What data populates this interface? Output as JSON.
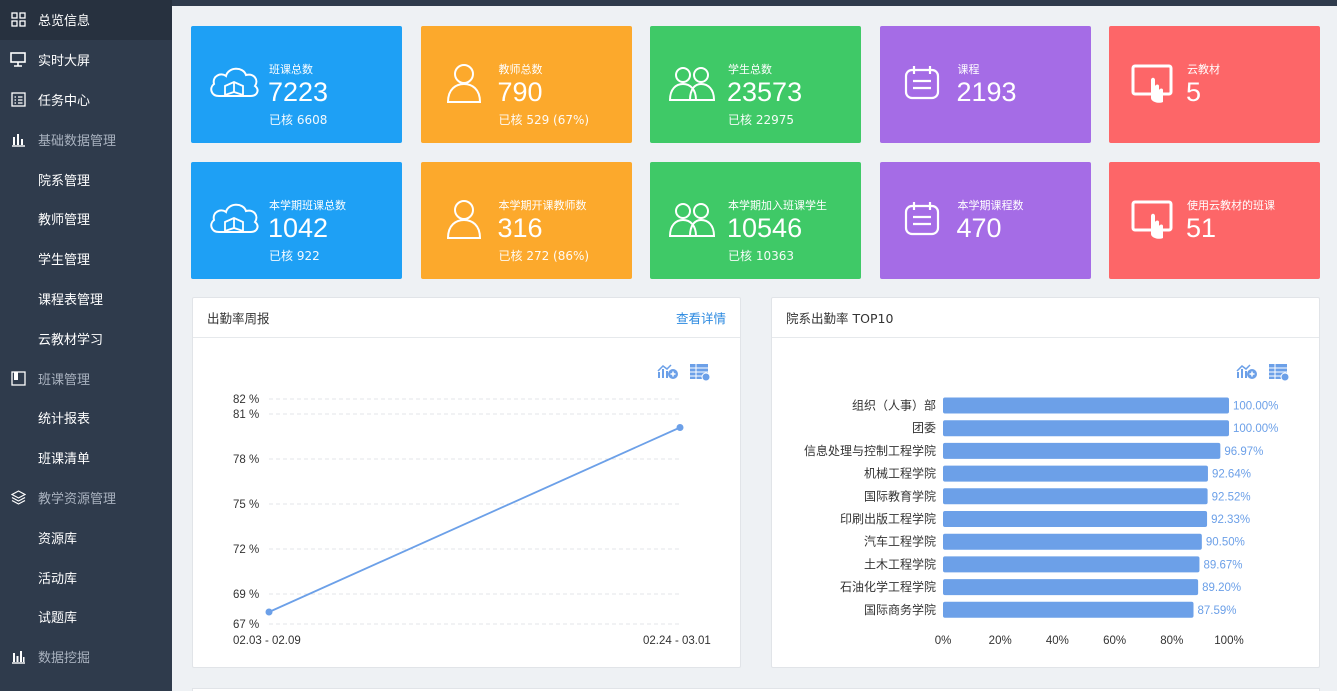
{
  "sidebar": {
    "items": [
      {
        "label": "总览信息",
        "icon": "dashboard-grid-icon",
        "type": "top"
      },
      {
        "label": "实时大屏",
        "icon": "monitor-icon",
        "type": "top"
      },
      {
        "label": "任务中心",
        "icon": "task-list-icon",
        "type": "top"
      },
      {
        "label": "基础数据管理",
        "icon": "bar-chart-icon",
        "type": "group"
      },
      {
        "label": "院系管理",
        "type": "sub"
      },
      {
        "label": "教师管理",
        "type": "sub"
      },
      {
        "label": "学生管理",
        "type": "sub"
      },
      {
        "label": "课程表管理",
        "type": "sub"
      },
      {
        "label": "云教材学习",
        "type": "sub"
      },
      {
        "label": "班课管理",
        "icon": "book-icon",
        "type": "group"
      },
      {
        "label": "统计报表",
        "type": "sub"
      },
      {
        "label": "班课清单",
        "type": "sub"
      },
      {
        "label": "教学资源管理",
        "icon": "layers-icon",
        "type": "group"
      },
      {
        "label": "资源库",
        "type": "sub"
      },
      {
        "label": "活动库",
        "type": "sub"
      },
      {
        "label": "试题库",
        "type": "sub"
      },
      {
        "label": "数据挖掘",
        "icon": "data-mining-icon",
        "type": "group"
      }
    ]
  },
  "cards": [
    {
      "label": "班课总数",
      "value": "7223",
      "sub": "已核 6608",
      "color": "#1ea0f5",
      "icon": "cloud-book-icon"
    },
    {
      "label": "教师总数",
      "value": "790",
      "sub": "已核 529 (67%)",
      "color": "#fca92c",
      "icon": "teacher-icon"
    },
    {
      "label": "学生总数",
      "value": "23573",
      "sub": "已核 22975",
      "color": "#3fc967",
      "icon": "students-icon"
    },
    {
      "label": "课程",
      "value": "2193",
      "sub": "",
      "color": "#a56ce6",
      "icon": "calendar-icon"
    },
    {
      "label": "云教材",
      "value": "5",
      "sub": "",
      "color": "#fd6668",
      "icon": "tablet-touch-icon"
    },
    {
      "label": "本学期班课总数",
      "value": "1042",
      "sub": "已核 922",
      "color": "#1ea0f5",
      "icon": "cloud-book-icon"
    },
    {
      "label": "本学期开课教师数",
      "value": "316",
      "sub": "已核 272 (86%)",
      "color": "#fca92c",
      "icon": "teacher-icon"
    },
    {
      "label": "本学期加入班课学生",
      "value": "10546",
      "sub": "已核 10363",
      "color": "#3fc967",
      "icon": "students-icon"
    },
    {
      "label": "本学期课程数",
      "value": "470",
      "sub": "",
      "color": "#a56ce6",
      "icon": "calendar-icon"
    },
    {
      "label": "使用云教材的班课",
      "value": "51",
      "sub": "",
      "color": "#fd6668",
      "icon": "tablet-touch-icon"
    }
  ],
  "attendance_panel": {
    "title": "出勤率周报",
    "link": "查看详情"
  },
  "dept_panel": {
    "title": "院系出勤率 TOP10"
  },
  "chart_data": [
    {
      "type": "line",
      "x": [
        "02.03 - 02.09",
        "02.24 - 03.01"
      ],
      "series": [
        {
          "values": [
            67.8,
            80.1
          ]
        }
      ],
      "ytick_labels": [
        "67 %",
        "69 %",
        "72 %",
        "75 %",
        "78 %",
        "81 %",
        "82 %"
      ],
      "ylim": [
        67,
        82
      ],
      "grid": true,
      "color": "#6ca0e8"
    },
    {
      "type": "bar",
      "orientation": "horizontal",
      "categories": [
        "组织（人事）部",
        "团委",
        "信息处理与控制工程学院",
        "机械工程学院",
        "国际教育学院",
        "印刷出版工程学院",
        "汽车工程学院",
        "土木工程学院",
        "石油化学工程学院",
        "国际商务学院"
      ],
      "values": [
        100.0,
        100.0,
        96.97,
        92.64,
        92.52,
        92.33,
        90.5,
        89.67,
        89.2,
        87.59
      ],
      "value_labels": [
        "100.00%",
        "100.00%",
        "96.97%",
        "92.64%",
        "92.52%",
        "92.33%",
        "90.50%",
        "89.67%",
        "89.20%",
        "87.59%"
      ],
      "xtick_labels": [
        "0%",
        "20%",
        "40%",
        "60%",
        "80%",
        "100%"
      ],
      "xlim": [
        0,
        100
      ],
      "color": "#6ca0e8"
    }
  ]
}
